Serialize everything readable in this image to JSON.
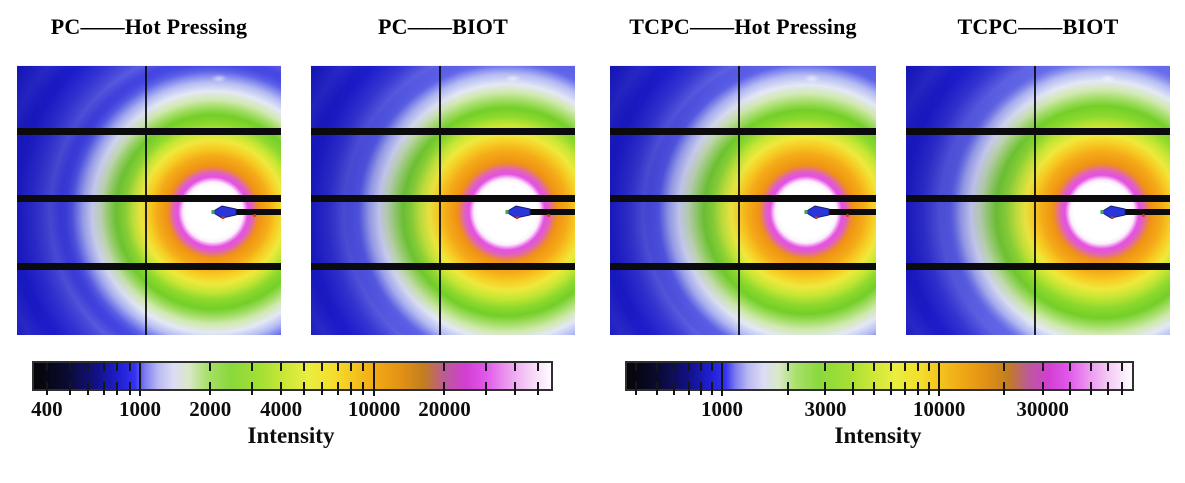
{
  "colors": {
    "background": "#ffffff",
    "text": "#000000",
    "panel_base_blue": "#2222d8",
    "detector_gap": "#0b0b0e",
    "beamstop_arrow": "#2a36d8"
  },
  "chart_data": {
    "type": "heatmap",
    "description": "Four 2D X-ray scattering (WAXS) detector images showing isotropic diffraction rings around the beam center, each with a beamstop arm, three horizontal detector-module gap stripes and one vertical module gap line. Two shared logarithmic intensity colorbars are shown below.",
    "panels": [
      {
        "title": "PC——Hot Pressing",
        "pattern": "isotropic rings",
        "beamstop": true,
        "detector_gaps": 3
      },
      {
        "title": "PC——BIOT",
        "pattern": "isotropic rings",
        "beamstop": true,
        "detector_gaps": 3
      },
      {
        "title": "TCPC——Hot Pressing",
        "pattern": "isotropic rings",
        "beamstop": true,
        "detector_gaps": 3
      },
      {
        "title": "TCPC——BIOT",
        "pattern": "isotropic rings",
        "beamstop": true,
        "detector_gaps": 3
      }
    ],
    "colormap": [
      "#050508",
      "#111183",
      "#3232f2",
      "#dcdcf5",
      "#8ad83c",
      "#e9ee40",
      "#f0a714",
      "#c27d20",
      "#d23ed2",
      "#ec98f0",
      "#fefbff"
    ],
    "colorbars": [
      {
        "label": "Intensity",
        "scale": "log",
        "range": [
          352,
          57000
        ],
        "labeled_tick_values": [
          400,
          1000,
          2000,
          4000,
          10000,
          20000
        ],
        "major_tick_values": [
          1000,
          10000
        ],
        "ticks": [
          {
            "value": 400,
            "pos": 2.5,
            "label": "400"
          },
          {
            "value": 500,
            "pos": 6.9
          },
          {
            "value": 600,
            "pos": 10.5
          },
          {
            "value": 700,
            "pos": 13.5
          },
          {
            "value": 800,
            "pos": 16.1
          },
          {
            "value": 900,
            "pos": 18.5
          },
          {
            "value": 1000,
            "pos": 20.5,
            "label": "1000",
            "major": true
          },
          {
            "value": 2000,
            "pos": 34.1,
            "label": "2000"
          },
          {
            "value": 3000,
            "pos": 42.1
          },
          {
            "value": 4000,
            "pos": 47.8,
            "label": "4000"
          },
          {
            "value": 5000,
            "pos": 52.2
          },
          {
            "value": 6000,
            "pos": 55.7
          },
          {
            "value": 7000,
            "pos": 58.8
          },
          {
            "value": 8000,
            "pos": 61.4
          },
          {
            "value": 9000,
            "pos": 63.7
          },
          {
            "value": 10000,
            "pos": 65.8,
            "label": "10000",
            "major": true
          },
          {
            "value": 20000,
            "pos": 79.4,
            "label": "20000"
          },
          {
            "value": 30000,
            "pos": 87.4
          },
          {
            "value": 40000,
            "pos": 93.0
          },
          {
            "value": 50000,
            "pos": 97.4
          }
        ]
      },
      {
        "label": "Intensity",
        "scale": "log",
        "range": [
          365,
          78000
        ],
        "labeled_tick_values": [
          1000,
          3000,
          10000,
          30000
        ],
        "major_tick_values": [
          1000,
          10000
        ],
        "ticks": [
          {
            "value": 400,
            "pos": 1.7
          },
          {
            "value": 500,
            "pos": 5.9
          },
          {
            "value": 600,
            "pos": 9.3
          },
          {
            "value": 700,
            "pos": 12.2
          },
          {
            "value": 800,
            "pos": 14.7
          },
          {
            "value": 900,
            "pos": 16.9
          },
          {
            "value": 1000,
            "pos": 18.8,
            "label": "1000",
            "major": true
          },
          {
            "value": 2000,
            "pos": 31.8
          },
          {
            "value": 3000,
            "pos": 39.3,
            "label": "3000"
          },
          {
            "value": 4000,
            "pos": 44.7
          },
          {
            "value": 5000,
            "pos": 48.9
          },
          {
            "value": 6000,
            "pos": 52.3
          },
          {
            "value": 7000,
            "pos": 55.1
          },
          {
            "value": 8000,
            "pos": 57.6
          },
          {
            "value": 9000,
            "pos": 59.8
          },
          {
            "value": 10000,
            "pos": 61.8,
            "label": "10000",
            "major": true
          },
          {
            "value": 20000,
            "pos": 74.7
          },
          {
            "value": 30000,
            "pos": 82.3,
            "label": "30000"
          },
          {
            "value": 40000,
            "pos": 87.7
          },
          {
            "value": 50000,
            "pos": 91.8
          },
          {
            "value": 60000,
            "pos": 95.2
          },
          {
            "value": 70000,
            "pos": 98.1
          }
        ]
      }
    ]
  }
}
